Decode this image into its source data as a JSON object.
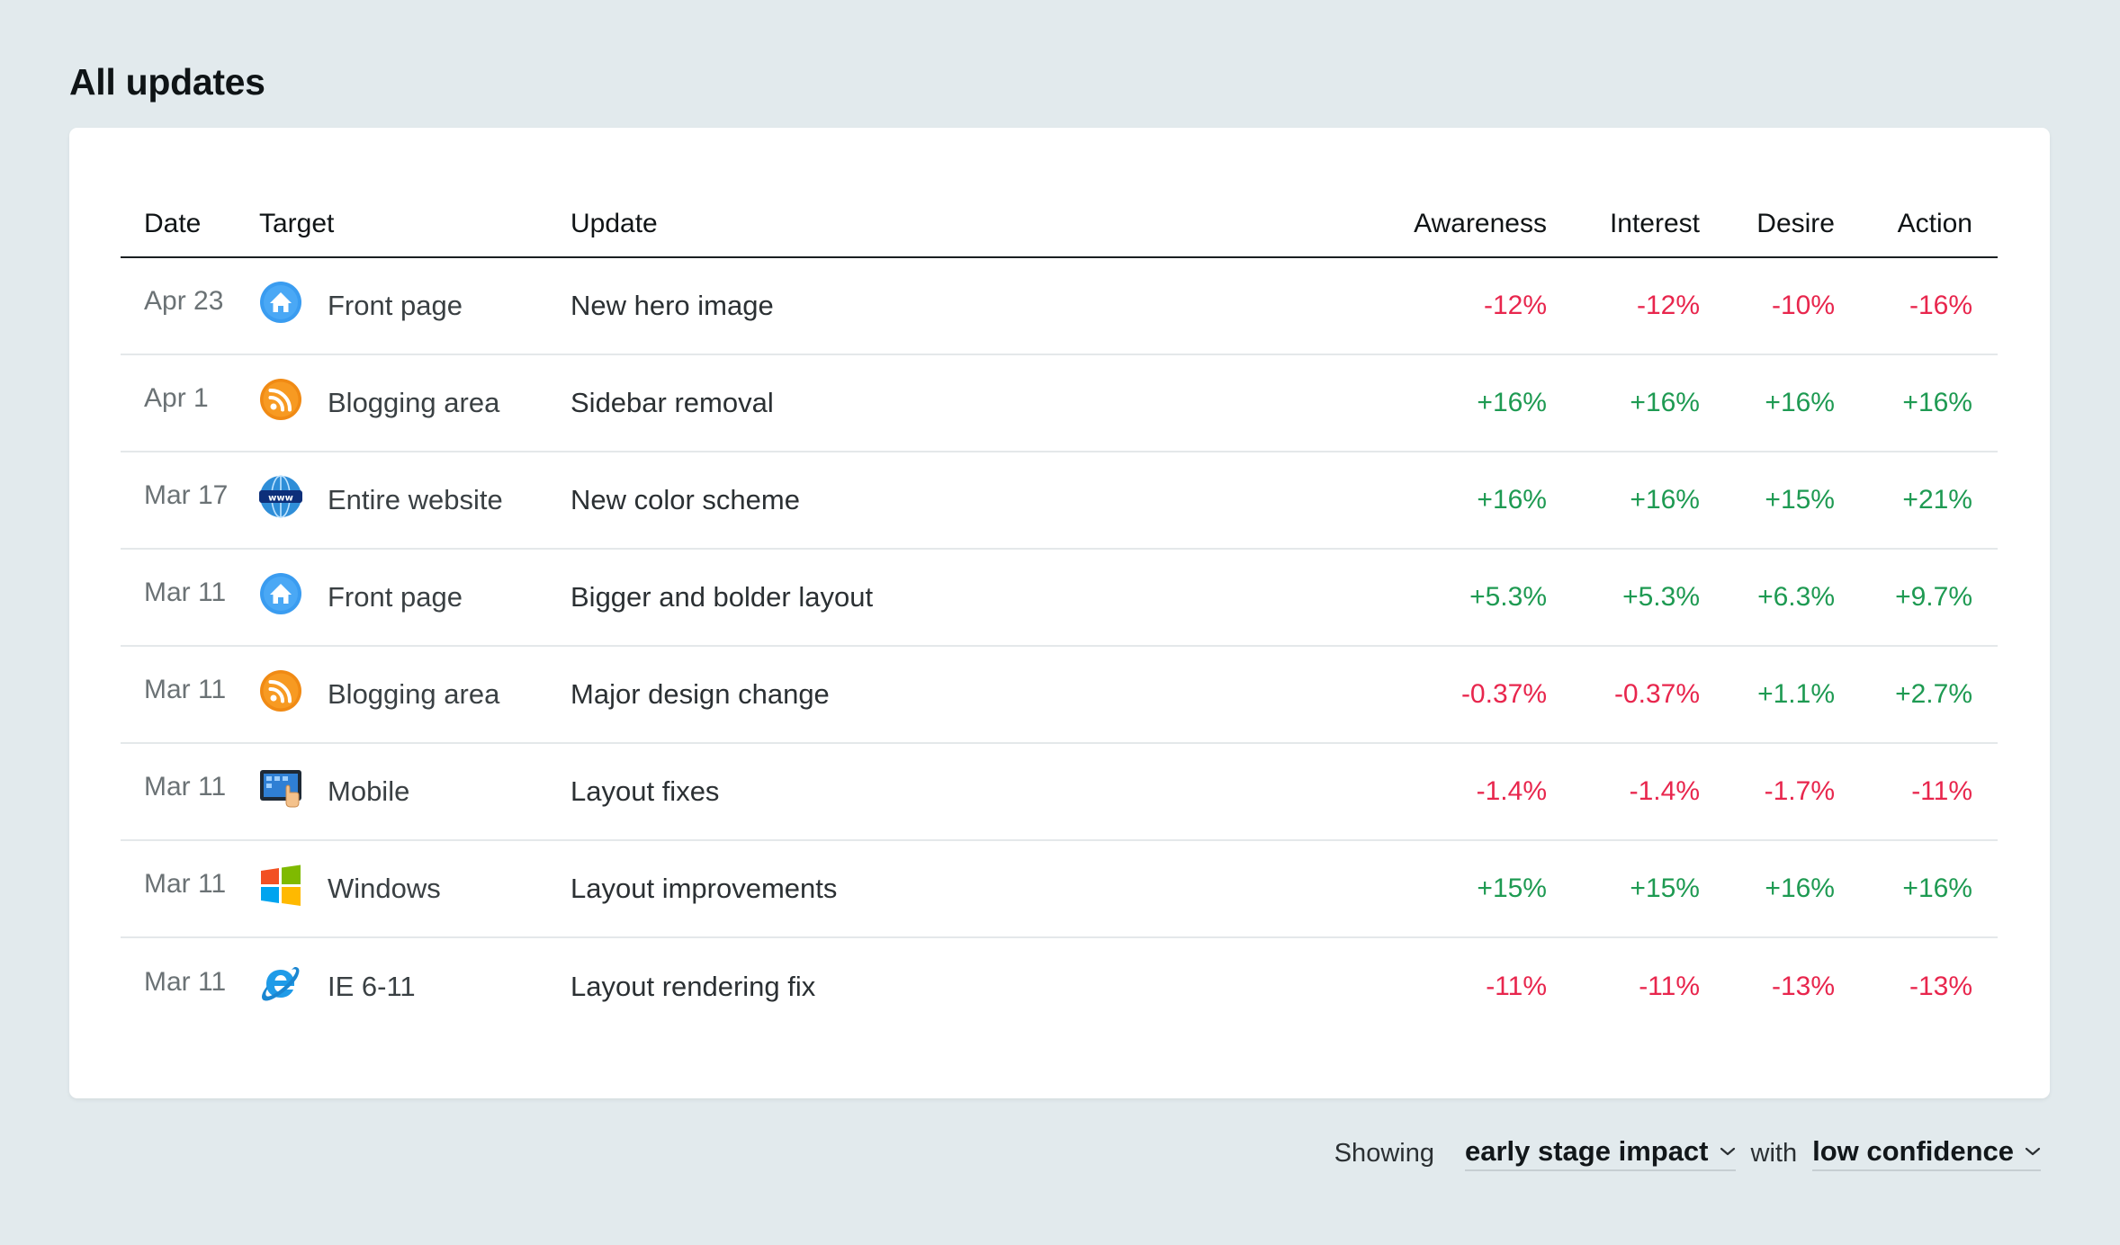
{
  "page": {
    "title": "All updates"
  },
  "table": {
    "headers": {
      "date": "Date",
      "target": "Target",
      "update": "Update",
      "awareness": "Awareness",
      "interest": "Interest",
      "desire": "Desire",
      "action": "Action"
    },
    "rows": [
      {
        "date": "Apr 23",
        "target": "Front page",
        "icon": "home-icon",
        "update": "New hero image",
        "awareness": "-12%",
        "interest": "-12%",
        "desire": "-10%",
        "action": "-16%"
      },
      {
        "date": "Apr 1",
        "target": "Blogging area",
        "icon": "rss-icon",
        "update": "Sidebar removal",
        "awareness": "+16%",
        "interest": "+16%",
        "desire": "+16%",
        "action": "+16%"
      },
      {
        "date": "Mar 17",
        "target": "Entire website",
        "icon": "www-globe-icon",
        "update": "New color scheme",
        "awareness": "+16%",
        "interest": "+16%",
        "desire": "+15%",
        "action": "+21%"
      },
      {
        "date": "Mar 11",
        "target": "Front page",
        "icon": "home-icon",
        "update": "Bigger and bolder layout",
        "awareness": "+5.3%",
        "interest": "+5.3%",
        "desire": "+6.3%",
        "action": "+9.7%"
      },
      {
        "date": "Mar 11",
        "target": "Blogging area",
        "icon": "rss-icon",
        "update": "Major design change",
        "awareness": "-0.37%",
        "interest": "-0.37%",
        "desire": "+1.1%",
        "action": "+2.7%"
      },
      {
        "date": "Mar 11",
        "target": "Mobile",
        "icon": "tablet-touch-icon",
        "update": "Layout fixes",
        "awareness": "-1.4%",
        "interest": "-1.4%",
        "desire": "-1.7%",
        "action": "-11%"
      },
      {
        "date": "Mar 11",
        "target": "Windows",
        "icon": "windows-logo-icon",
        "update": "Layout improvements",
        "awareness": "+15%",
        "interest": "+15%",
        "desire": "+16%",
        "action": "+16%"
      },
      {
        "date": "Mar 11",
        "target": "IE 6-11",
        "icon": "internet-explorer-icon",
        "update": "Layout rendering fix",
        "awareness": "-11%",
        "interest": "-11%",
        "desire": "-13%",
        "action": "-13%"
      }
    ]
  },
  "footer": {
    "showing_label": "Showing",
    "impact_value": "early stage impact",
    "with_label": "with",
    "confidence_value": "low confidence"
  },
  "colors": {
    "negative": "#e8264d",
    "positive": "#1e9a52",
    "background": "#e2eaed"
  }
}
